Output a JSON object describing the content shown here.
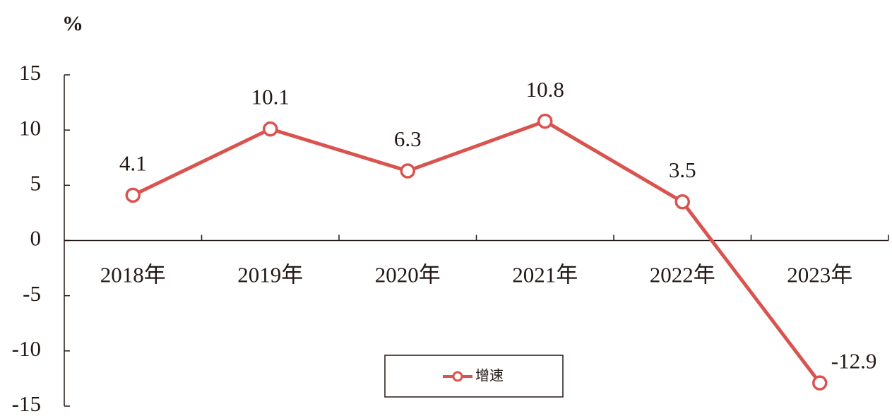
{
  "chart_data": {
    "type": "line",
    "y_unit": "%",
    "categories": [
      "2018年",
      "2019年",
      "2020年",
      "2021年",
      "2022年",
      "2023年"
    ],
    "series": [
      {
        "name": "增速",
        "color": "#d9534f",
        "values": [
          4.1,
          10.1,
          6.3,
          10.8,
          3.5,
          -12.9
        ]
      }
    ],
    "ylim": [
      -15,
      15
    ],
    "yticks": [
      -15,
      -10,
      -5,
      0,
      5,
      10,
      15
    ],
    "legend": "bottom-center"
  }
}
